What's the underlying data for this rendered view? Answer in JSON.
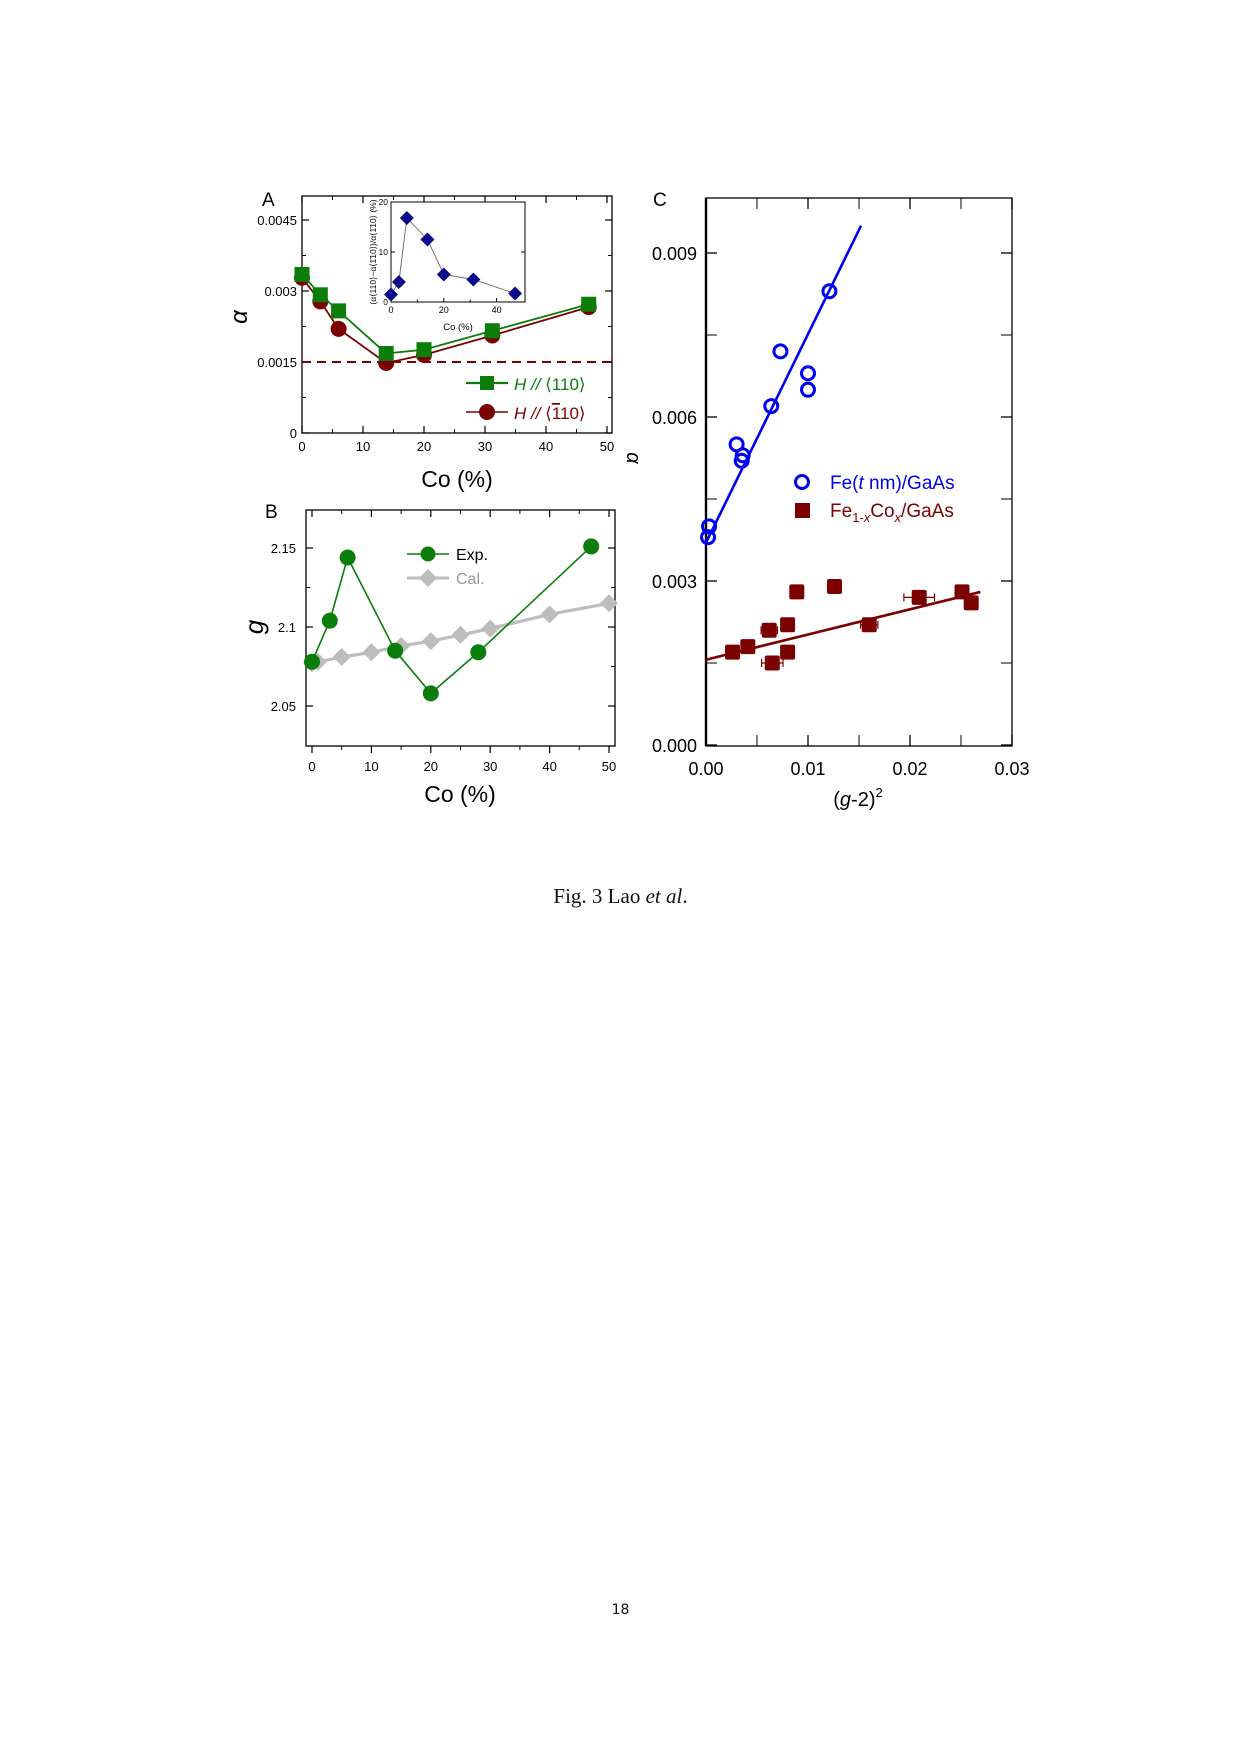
{
  "caption": {
    "prefix": "Fig. 3 Lao ",
    "authors_italic": "et al",
    "suffix": "."
  },
  "page_number": "18",
  "colors": {
    "green": "#0a7d0a",
    "darkred": "#7b0000",
    "blue": "#0000ee",
    "navy": "#0a0a8a",
    "gray": "#bdbdbd"
  },
  "chart_data": [
    {
      "panel": "A",
      "type": "line",
      "title": "",
      "xlabel": "Co (%)",
      "ylabel": "α",
      "xlim": [
        0,
        50
      ],
      "ylim": [
        0,
        0.005
      ],
      "xticks": [
        "0",
        "10",
        "20",
        "30",
        "40",
        "50"
      ],
      "yticks": [
        "0",
        "0.0015",
        "0.003",
        "0.0045"
      ],
      "reference_line": {
        "y": 0.0015,
        "style": "dashed",
        "color": "#7b0000"
      },
      "legend": {
        "position": "lower right",
        "entries": [
          "H // ⟨110⟩",
          "H // ⟨1̄10⟩"
        ]
      },
      "x": [
        0,
        3,
        6,
        13.8,
        20,
        31.2,
        47
      ],
      "series": [
        {
          "name": "H // ⟨110⟩",
          "marker": "square",
          "color": "#0a7d0a",
          "values": [
            0.00335,
            0.00292,
            0.00258,
            0.00168,
            0.00176,
            0.00216,
            0.00272
          ]
        },
        {
          "name": "H // ⟨1̄10⟩",
          "marker": "circle",
          "color": "#7b0000",
          "values": [
            0.00328,
            0.00278,
            0.0022,
            0.00148,
            0.00165,
            0.00206,
            0.00266
          ]
        }
      ],
      "inset": {
        "type": "line",
        "xlabel": "Co (%)",
        "ylabel": "(α⟨110⟩−α⟨1̄10⟩)/α⟨1̄10⟩ (%)",
        "xlim": [
          0,
          50
        ],
        "ylim": [
          0,
          20
        ],
        "xticks": [
          "0",
          "20",
          "40"
        ],
        "yticks": [
          "0",
          "10",
          "20"
        ],
        "x": [
          0,
          3,
          6,
          13.8,
          20,
          31.2,
          47
        ],
        "values": [
          1.5,
          4.0,
          16.8,
          12.5,
          5.5,
          4.5,
          1.7
        ],
        "marker": "diamond",
        "color": "#0a0a8a"
      }
    },
    {
      "panel": "B",
      "type": "line",
      "title": "",
      "xlabel": "Co (%)",
      "ylabel": "g",
      "xlim": [
        -1,
        51
      ],
      "ylim": [
        2.025,
        2.175
      ],
      "xticks": [
        "0",
        "10",
        "20",
        "30",
        "40",
        "50"
      ],
      "yticks": [
        "2.05",
        "2.1",
        "2.15"
      ],
      "legend": {
        "position": "upper center",
        "entries": [
          "Exp.",
          "Cal."
        ]
      },
      "series": [
        {
          "name": "Exp.",
          "marker": "circle",
          "color": "#0a7d0a",
          "x": [
            0,
            3,
            6,
            14,
            20,
            28,
            47
          ],
          "values": [
            2.078,
            2.104,
            2.144,
            2.085,
            2.058,
            2.084,
            2.151
          ]
        },
        {
          "name": "Cal.",
          "marker": "diamond",
          "color": "#bdbdbd",
          "x": [
            0,
            1,
            5,
            10,
            15,
            20,
            25,
            30,
            40,
            50
          ],
          "values": [
            2.077,
            2.078,
            2.081,
            2.084,
            2.088,
            2.091,
            2.095,
            2.099,
            2.108,
            2.115
          ]
        }
      ]
    },
    {
      "panel": "C",
      "type": "scatter",
      "title": "",
      "xlabel": "(g-2)²",
      "ylabel": "α",
      "xlim": [
        0,
        0.03
      ],
      "ylim": [
        0,
        0.0105
      ],
      "xticks": [
        "0.00",
        "0.01",
        "0.02",
        "0.03"
      ],
      "yticks": [
        "0.000",
        "0.003",
        "0.006",
        "0.009"
      ],
      "legend": {
        "position": "center right",
        "entries": [
          "Fe(t nm)/GaAs",
          "Fe1-xCox/GaAs"
        ]
      },
      "series": [
        {
          "name": "Fe(t nm)/GaAs",
          "marker": "open-circle",
          "color": "#0000ee",
          "x": [
            0.0002,
            0.0003,
            0.003,
            0.0035,
            0.0036,
            0.0064,
            0.0073,
            0.01,
            0.01,
            0.0121
          ],
          "values": [
            0.0038,
            0.004,
            0.0055,
            0.0052,
            0.0053,
            0.0062,
            0.0072,
            0.0068,
            0.0065,
            0.0083
          ],
          "fit": {
            "x": [
              0.0,
              0.0152
            ],
            "y": [
              0.0037,
              0.0095
            ]
          }
        },
        {
          "name": "Fe1-xCox/GaAs",
          "marker": "filled-square",
          "color": "#7b0000",
          "x": [
            0.0026,
            0.0041,
            0.0062,
            0.008,
            0.008,
            0.0065,
            0.0089,
            0.0126,
            0.016,
            0.0209,
            0.0251,
            0.026
          ],
          "values": [
            0.0017,
            0.0018,
            0.0021,
            0.0022,
            0.0017,
            0.0015,
            0.0028,
            0.0029,
            0.0022,
            0.0027,
            0.0028,
            0.0026
          ],
          "xerr": [
            0,
            0,
            0.0016,
            0,
            0,
            0.0021,
            0.0012,
            0,
            0.0017,
            0.003,
            0.0,
            0
          ],
          "fit": {
            "x": [
              0.0,
              0.0269
            ],
            "y": [
              0.00156,
              0.0028
            ]
          }
        }
      ]
    }
  ],
  "labels": {
    "panelA": "A",
    "panelB": "B",
    "panelC": "C",
    "xlabelA": "Co (%)",
    "xlabelB": "Co (%)",
    "xlabelC_main": "(g-2)",
    "xlabelC_sup": "2",
    "ylabelA": "α",
    "ylabelB": "g",
    "ylabelC": "α",
    "insetX": "Co (%)",
    "legendA1": "H // ⟨110⟩",
    "legendA2": "H // ⟨1̄10⟩",
    "legendB1": "Exp.",
    "legendB2": "Cal.",
    "legendC1": "Fe(t nm)/GaAs",
    "legendC2": "Fe1-xCox/GaAs"
  }
}
